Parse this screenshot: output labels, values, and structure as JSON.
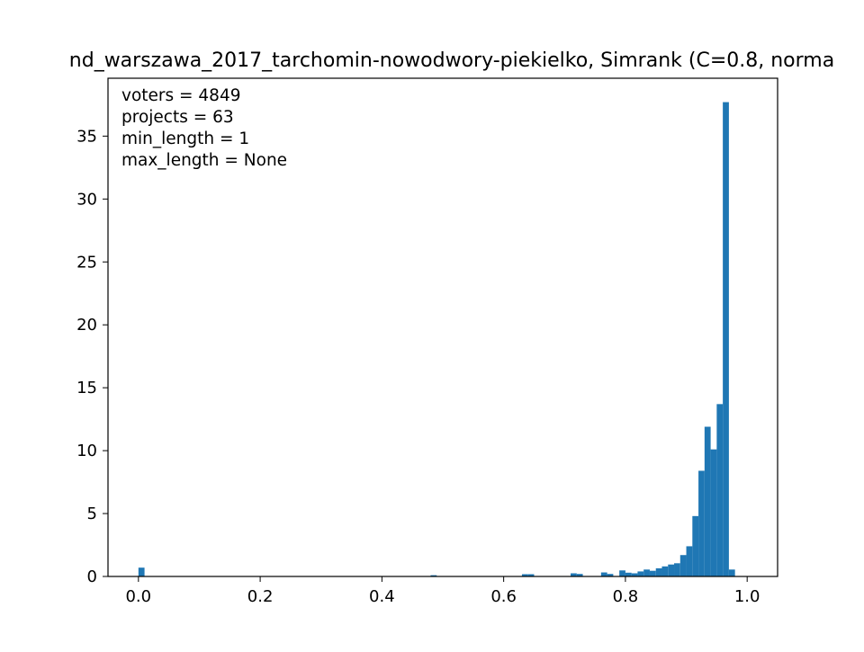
{
  "chart_data": {
    "type": "bar",
    "title": "nd_warszawa_2017_tarchomin-nowodwory-piekielko, Simrank (C=0.8, norma",
    "xlabel": "",
    "ylabel": "",
    "xlim": [
      -0.05,
      1.05
    ],
    "ylim": [
      0,
      39.6
    ],
    "xticks": [
      0.0,
      0.2,
      0.4,
      0.6,
      0.8,
      1.0
    ],
    "xtick_labels": [
      "0.0",
      "0.2",
      "0.4",
      "0.6",
      "0.8",
      "1.0"
    ],
    "yticks": [
      0,
      5,
      10,
      15,
      20,
      25,
      30,
      35
    ],
    "ytick_labels": [
      "0",
      "5",
      "10",
      "15",
      "20",
      "25",
      "30",
      "35"
    ],
    "grid": false,
    "annotation_lines": [
      "voters = 4849",
      "projects = 63",
      "min_length = 1",
      "max_length = None"
    ],
    "color": "#1f77b4",
    "bin_width": 0.01,
    "bins": [
      {
        "x": 0.0,
        "value": 0.7
      },
      {
        "x": 0.48,
        "value": 0.1
      },
      {
        "x": 0.63,
        "value": 0.18
      },
      {
        "x": 0.64,
        "value": 0.18
      },
      {
        "x": 0.71,
        "value": 0.25
      },
      {
        "x": 0.72,
        "value": 0.2
      },
      {
        "x": 0.76,
        "value": 0.32
      },
      {
        "x": 0.77,
        "value": 0.2
      },
      {
        "x": 0.79,
        "value": 0.48
      },
      {
        "x": 0.8,
        "value": 0.3
      },
      {
        "x": 0.81,
        "value": 0.25
      },
      {
        "x": 0.82,
        "value": 0.4
      },
      {
        "x": 0.83,
        "value": 0.55
      },
      {
        "x": 0.84,
        "value": 0.45
      },
      {
        "x": 0.85,
        "value": 0.65
      },
      {
        "x": 0.86,
        "value": 0.8
      },
      {
        "x": 0.87,
        "value": 0.95
      },
      {
        "x": 0.88,
        "value": 1.05
      },
      {
        "x": 0.89,
        "value": 1.7
      },
      {
        "x": 0.9,
        "value": 2.4
      },
      {
        "x": 0.91,
        "value": 4.8
      },
      {
        "x": 0.92,
        "value": 8.4
      },
      {
        "x": 0.93,
        "value": 11.9
      },
      {
        "x": 0.94,
        "value": 10.1
      },
      {
        "x": 0.95,
        "value": 13.7
      },
      {
        "x": 0.96,
        "value": 37.7
      },
      {
        "x": 0.97,
        "value": 0.55
      }
    ]
  }
}
